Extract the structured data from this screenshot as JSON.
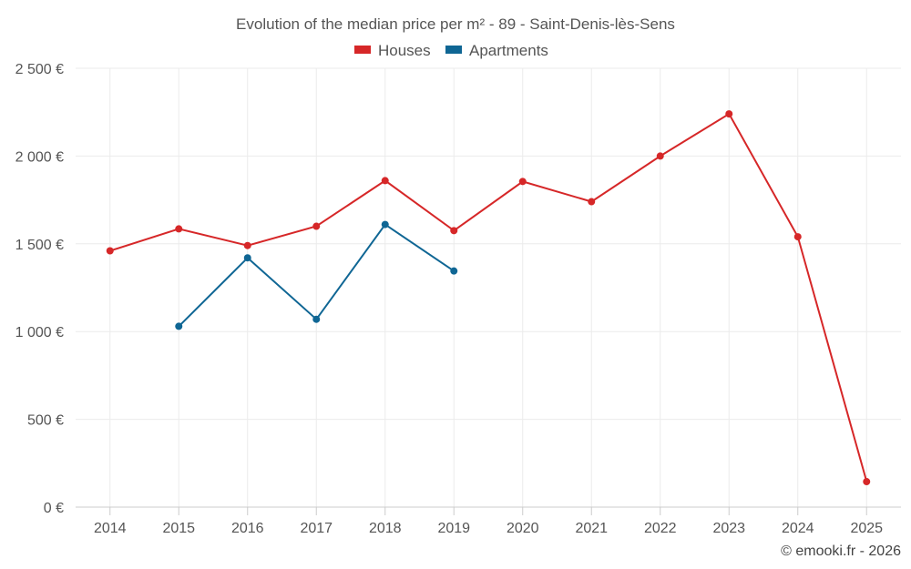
{
  "chart_data": {
    "type": "line",
    "title": "Evolution of the median price per m² - 89 - Saint-Denis-lès-Sens",
    "categories": [
      "2014",
      "2015",
      "2016",
      "2017",
      "2018",
      "2019",
      "2020",
      "2021",
      "2022",
      "2023",
      "2024",
      "2025"
    ],
    "series": [
      {
        "name": "Houses",
        "color": "#d62728",
        "values": [
          1460,
          1585,
          1490,
          1600,
          1860,
          1575,
          1855,
          1740,
          2000,
          2240,
          1540,
          145
        ]
      },
      {
        "name": "Apartments",
        "color": "#0f6694",
        "values": [
          null,
          1030,
          1420,
          1070,
          1610,
          1345,
          null,
          null,
          null,
          null,
          null,
          null
        ]
      }
    ],
    "yticks": [
      0,
      500,
      1000,
      1500,
      2000,
      2500
    ],
    "ytick_labels": [
      "0 €",
      "500 €",
      "1 000 €",
      "1 500 €",
      "2 000 €",
      "2 500 €"
    ],
    "ylim": [
      0,
      2500
    ],
    "grid": true,
    "legend_position": "top-center",
    "xlabel": "",
    "ylabel": ""
  },
  "credit": "© emooki.fr - 2026"
}
